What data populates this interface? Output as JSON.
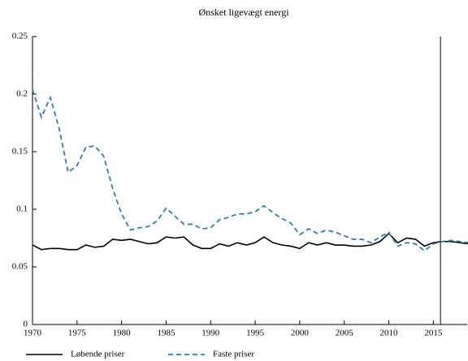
{
  "chart_data": {
    "type": "line",
    "title": "Ønsket ligevægt energi",
    "x": [
      1970,
      1971,
      1972,
      1973,
      1974,
      1975,
      1976,
      1977,
      1978,
      1979,
      1980,
      1981,
      1982,
      1983,
      1984,
      1985,
      1986,
      1987,
      1988,
      1989,
      1990,
      1991,
      1992,
      1993,
      1994,
      1995,
      1996,
      1997,
      1998,
      1999,
      2000,
      2001,
      2002,
      2003,
      2004,
      2005,
      2006,
      2007,
      2008,
      2009,
      2010,
      2011,
      2012,
      2013,
      2014,
      2015,
      2016,
      2017,
      2018,
      2019
    ],
    "series": [
      {
        "name": "Løbende priser",
        "color": "#000000",
        "dash": false,
        "values": [
          0.069,
          0.065,
          0.066,
          0.066,
          0.065,
          0.065,
          0.069,
          0.067,
          0.068,
          0.074,
          0.073,
          0.074,
          0.072,
          0.07,
          0.071,
          0.076,
          0.075,
          0.076,
          0.069,
          0.066,
          0.066,
          0.07,
          0.068,
          0.071,
          0.069,
          0.071,
          0.076,
          0.071,
          0.069,
          0.068,
          0.066,
          0.071,
          0.069,
          0.071,
          0.069,
          0.069,
          0.068,
          0.068,
          0.069,
          0.072,
          0.079,
          0.071,
          0.075,
          0.074,
          0.068,
          0.071,
          0.072,
          0.072,
          0.071,
          0.07
        ]
      },
      {
        "name": "Faste priser",
        "color": "#2a7fb0",
        "dash": true,
        "values": [
          0.204,
          0.18,
          0.197,
          0.17,
          0.132,
          0.138,
          0.154,
          0.155,
          0.146,
          0.118,
          0.096,
          0.082,
          0.084,
          0.085,
          0.09,
          0.101,
          0.094,
          0.087,
          0.087,
          0.083,
          0.084,
          0.091,
          0.093,
          0.096,
          0.096,
          0.098,
          0.103,
          0.097,
          0.092,
          0.088,
          0.078,
          0.083,
          0.079,
          0.082,
          0.08,
          0.077,
          0.074,
          0.074,
          0.071,
          0.076,
          0.08,
          0.068,
          0.071,
          0.07,
          0.064,
          0.07,
          0.072,
          0.073,
          0.072,
          0.071
        ]
      }
    ],
    "xlim": [
      1970,
      2018.8
    ],
    "xticks": [
      1970,
      1975,
      1980,
      1985,
      1990,
      1995,
      2000,
      2005,
      2010,
      2015
    ],
    "ylim": [
      0,
      0.25
    ],
    "yticks": [
      0,
      0.05,
      0.1,
      0.15,
      0.2,
      0.25
    ],
    "vline": 2015.8,
    "grid": false,
    "legend": "bottom-left"
  }
}
